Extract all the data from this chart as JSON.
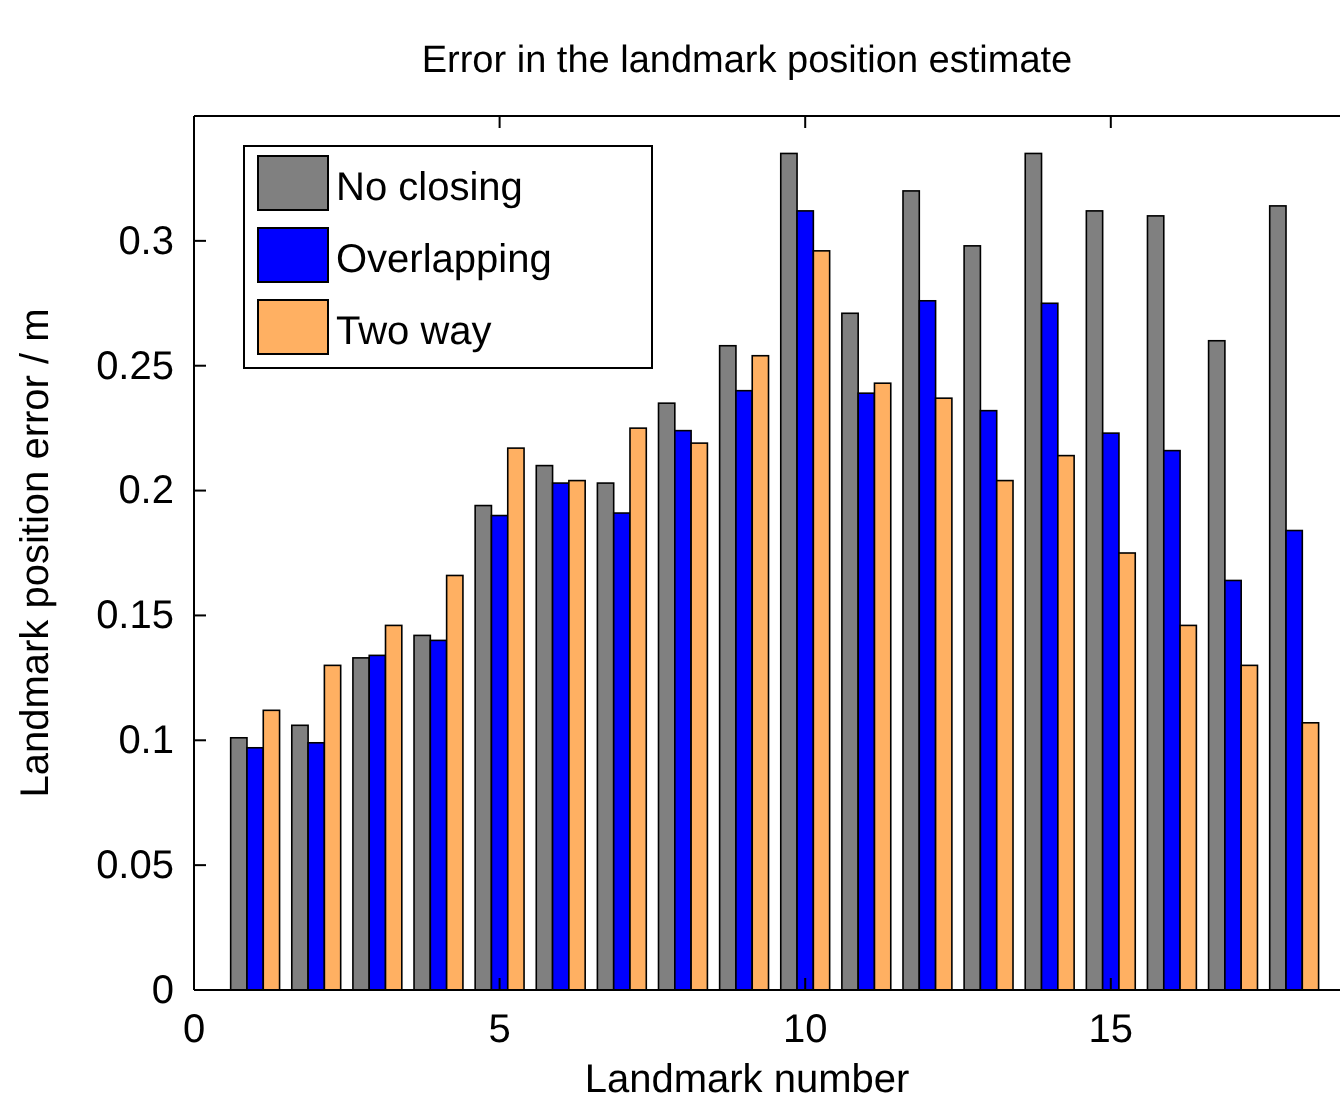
{
  "chart_data": {
    "type": "bar",
    "title": "Error in the landmark position estimate",
    "xlabel": "Landmark number",
    "ylabel": "Landmark position error / m",
    "x": [
      1,
      2,
      3,
      4,
      5,
      6,
      7,
      8,
      9,
      10,
      11,
      12,
      13,
      14,
      15,
      16,
      17,
      18
    ],
    "series": [
      {
        "name": "No closing",
        "color": "#808080",
        "values": [
          0.101,
          0.106,
          0.133,
          0.142,
          0.194,
          0.21,
          0.203,
          0.235,
          0.258,
          0.335,
          0.271,
          0.32,
          0.298,
          0.335,
          0.312,
          0.31,
          0.26,
          0.314
        ]
      },
      {
        "name": "Overlapping",
        "color": "#0000ff",
        "values": [
          0.097,
          0.099,
          0.134,
          0.14,
          0.19,
          0.203,
          0.191,
          0.224,
          0.24,
          0.312,
          0.239,
          0.276,
          0.232,
          0.275,
          0.223,
          0.216,
          0.164,
          0.184
        ]
      },
      {
        "name": "Two way",
        "color": "#ffb062",
        "values": [
          0.112,
          0.13,
          0.146,
          0.166,
          0.217,
          0.204,
          0.225,
          0.219,
          0.254,
          0.296,
          0.243,
          0.237,
          0.204,
          0.214,
          0.175,
          0.146,
          0.13,
          0.107
        ]
      }
    ],
    "xlim": [
      0,
      18.75
    ],
    "xticks": [
      0,
      5,
      10,
      15
    ],
    "ylim": [
      0,
      0.35
    ],
    "yticks": [
      0,
      0.05,
      0.1,
      0.15,
      0.2,
      0.25,
      0.3
    ],
    "grid": false,
    "legend": "top left"
  }
}
